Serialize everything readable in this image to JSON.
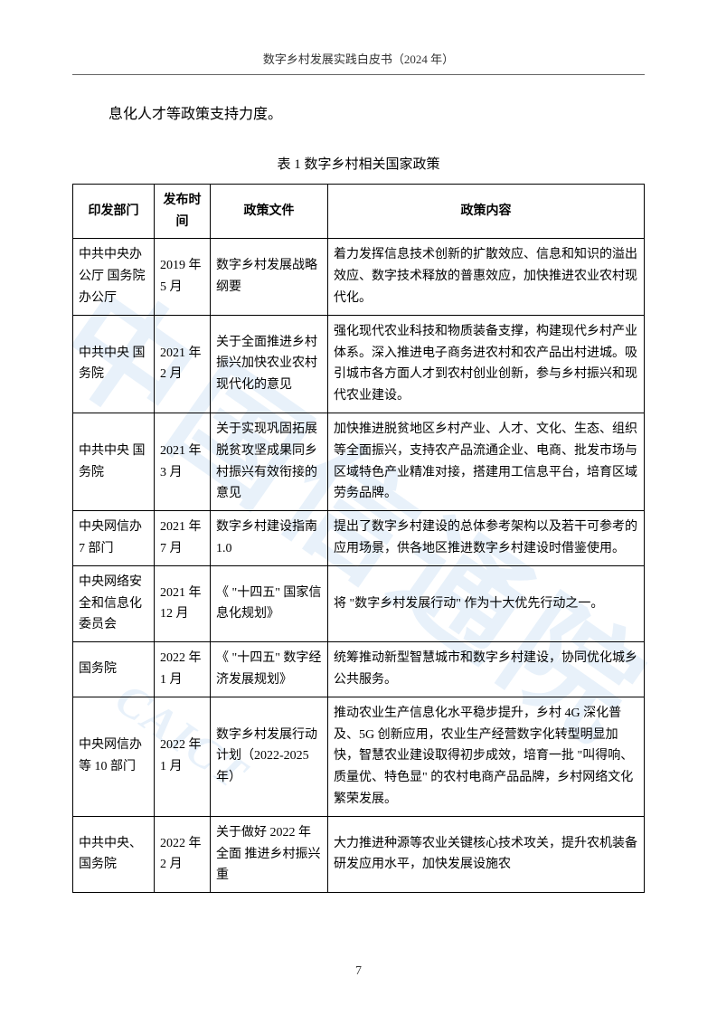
{
  "header": {
    "title": "数字乡村发展实践白皮书（2024 年）"
  },
  "intro": {
    "text": "息化人才等政策支持力度。"
  },
  "table": {
    "caption": "表 1 数字乡村相关国家政策",
    "headers": {
      "dept": "印发部门",
      "date": "发布时间",
      "doc": "政策文件",
      "content": "政策内容"
    },
    "rows": [
      {
        "dept": "中共中央办公厅 国务院办公厅",
        "date": "2019 年5 月",
        "doc": "数字乡村发展战略纲要",
        "content": "着力发挥信息技术创新的扩散效应、信息和知识的溢出效应、数字技术释放的普惠效应，加快推进农业农村现代化。"
      },
      {
        "dept": "中共中央 国务院",
        "date": "2021 年2 月",
        "doc": "关于全面推进乡村振兴加快农业农村现代化的意见",
        "content": "强化现代农业科技和物质装备支撑，构建现代乡村产业体系。深入推进电子商务进农村和农产品出村进城。吸引城市各方面人才到农村创业创新，参与乡村振兴和现代农业建设。"
      },
      {
        "dept": "中共中央 国务院",
        "date": "2021 年3 月",
        "doc": "关于实现巩固拓展脱贫攻坚成果同乡村振兴有效衔接的意见",
        "content": "加快推进脱贫地区乡村产业、人才、文化、生态、组织等全面振兴，支持农产品流通企业、电商、批发市场与区域特色产业精准对接，搭建用工信息平台，培育区域劳务品牌。"
      },
      {
        "dept": "中央网信办 7 部门",
        "date": "2021 年7 月",
        "doc": "数字乡村建设指南 1.0",
        "content": "提出了数字乡村建设的总体参考架构以及若干可参考的应用场景，供各地区推进数字乡村建设时借鉴使用。"
      },
      {
        "dept": "中央网络安全和信息化委员会",
        "date": "2021 年12 月",
        "doc": "《 \"十四五\" 国家信息化规划》",
        "content": "将 \"数字乡村发展行动\" 作为十大优先行动之一。"
      },
      {
        "dept": "国务院",
        "date": "2022 年1 月",
        "doc": "《 \"十四五\" 数字经济发展规划》",
        "content": "统筹推动新型智慧城市和数字乡村建设，协同优化城乡公共服务。"
      },
      {
        "dept": "中央网信办等 10 部门",
        "date": "2022 年1 月",
        "doc": "数字乡村发展行动计划（2022-2025年）",
        "content": "推动农业生产信息化水平稳步提升，乡村 4G 深化普及、5G 创新应用，农业生产经营数字化转型明显加快，智慧农业建设取得初步成效，培育一批 \"叫得响、质量优、特色显\" 的农村电商产品品牌，乡村网络文化繁荣发展。"
      },
      {
        "dept": "中共中央、国务院",
        "date": "2022 年2 月",
        "doc": "关于做好 2022 年全面 推进乡村振兴重",
        "content": "大力推进种源等农业关键核心技术攻关，提升农机装备研发应用水平，加快发展设施农"
      }
    ]
  },
  "pageNumber": "7",
  "watermark": {
    "main": "中国信通院",
    "small": "CAICT"
  }
}
